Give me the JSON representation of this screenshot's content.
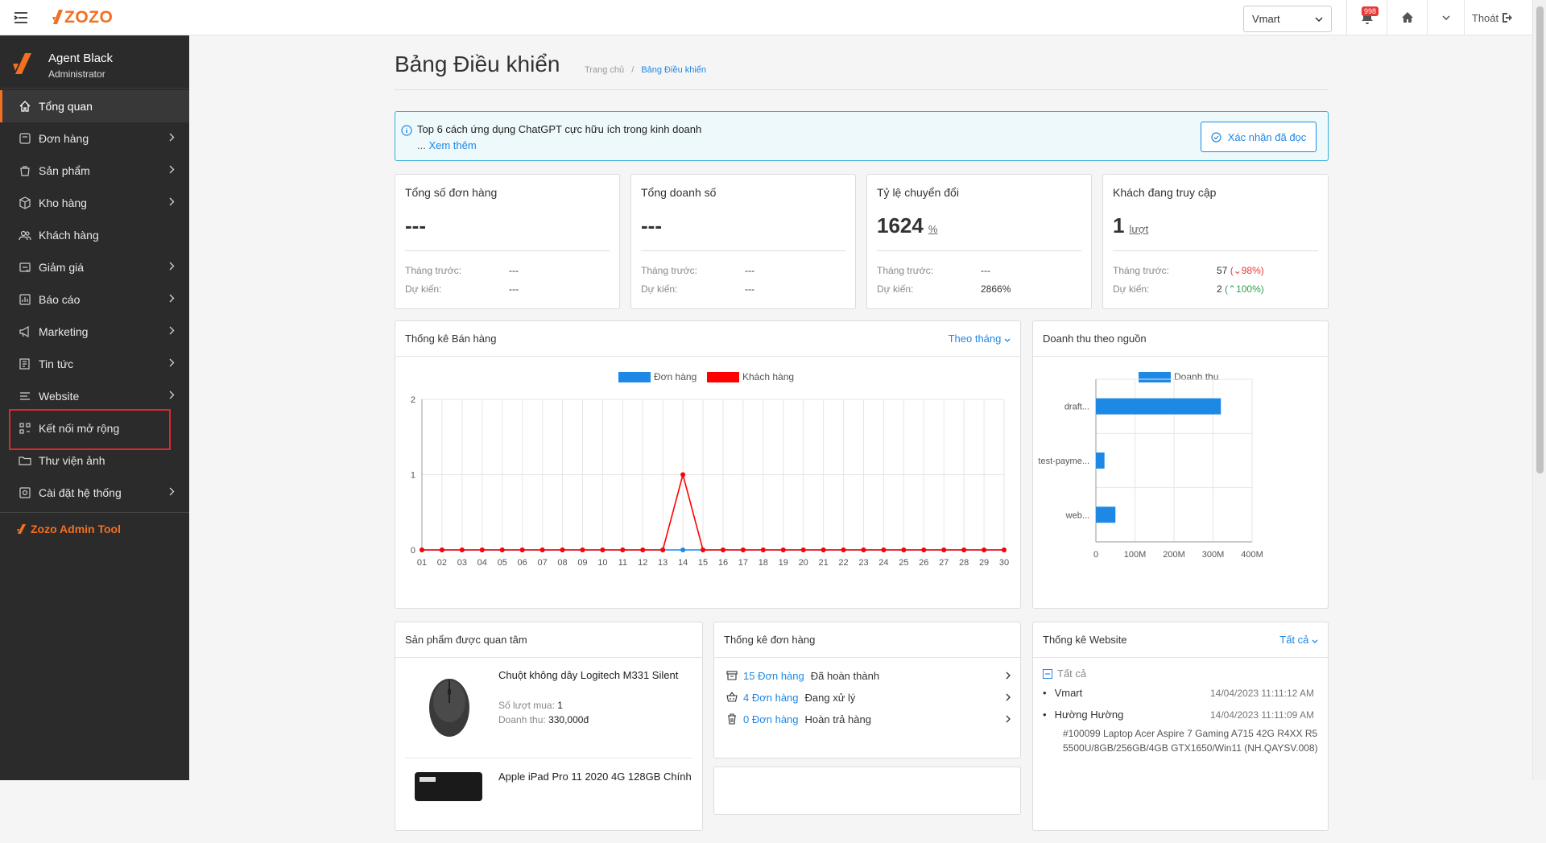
{
  "header": {
    "logo_text": "ZOZO",
    "store_value": "Vmart",
    "notif_count": "998",
    "logout_label": "Thoát"
  },
  "sidebar": {
    "user_name": "Agent Black",
    "user_role": "Administrator",
    "items": [
      {
        "label": "Tổng quan",
        "icon": "home-icon",
        "chevron": false,
        "active": true
      },
      {
        "label": "Đơn hàng",
        "icon": "order-icon",
        "chevron": true
      },
      {
        "label": "Sản phẩm",
        "icon": "bag-icon",
        "chevron": true
      },
      {
        "label": "Kho hàng",
        "icon": "box-icon",
        "chevron": true
      },
      {
        "label": "Khách hàng",
        "icon": "users-icon",
        "chevron": false
      },
      {
        "label": "Giảm giá",
        "icon": "discount-icon",
        "chevron": true
      },
      {
        "label": "Báo cáo",
        "icon": "report-icon",
        "chevron": true
      },
      {
        "label": "Marketing",
        "icon": "megaphone-icon",
        "chevron": true
      },
      {
        "label": "Tin tức",
        "icon": "news-icon",
        "chevron": true
      },
      {
        "label": "Website",
        "icon": "website-icon",
        "chevron": true
      },
      {
        "label": "Kết nối mở rộng",
        "icon": "apps-icon",
        "chevron": false
      },
      {
        "label": "Thư viện ảnh",
        "icon": "folder-icon",
        "chevron": false
      },
      {
        "label": "Cài đặt hệ thống",
        "icon": "settings-icon",
        "chevron": true
      }
    ],
    "admin_tool": "Zozo Admin Tool"
  },
  "page": {
    "title": "Bảng Điều khiển",
    "breadcrumb_home": "Trang chủ",
    "breadcrumb_sep": "/",
    "breadcrumb_current": "Bảng Điều khiển"
  },
  "notice": {
    "text": "Top 6 cách ứng dụng ChatGPT cực hữu ích trong kinh doanh",
    "ellipsis": "...",
    "more": "Xem thêm",
    "ack": "Xác nhận đã đọc"
  },
  "stats": [
    {
      "label": "Tổng số đơn hàng",
      "value": "---",
      "unit": "",
      "prev_label": "Tháng trước:",
      "prev": "---",
      "prev_delta": "",
      "fc_label": "Dự kiến:",
      "fc": "---",
      "fc_delta": ""
    },
    {
      "label": "Tổng doanh số",
      "value": "---",
      "unit": "",
      "prev_label": "Tháng trước:",
      "prev": "---",
      "prev_delta": "",
      "fc_label": "Dự kiến:",
      "fc": "---",
      "fc_delta": ""
    },
    {
      "label": "Tỷ lệ chuyển đổi",
      "value": "1624",
      "unit": "%",
      "prev_label": "Tháng trước:",
      "prev": "---",
      "prev_delta": "",
      "fc_label": "Dự kiến:",
      "fc": "2866%",
      "fc_delta": ""
    },
    {
      "label": "Khách đang truy cập",
      "value": "1",
      "unit": "lượt",
      "prev_label": "Tháng trước:",
      "prev": "57",
      "prev_delta": "(⌄98%)",
      "fc_label": "Dự kiến:",
      "fc": "2",
      "fc_delta": "(⌃100%)"
    }
  ],
  "sales_chart": {
    "title": "Thống kê Bán hàng",
    "filter": "Theo tháng",
    "legend": [
      {
        "name": "Đơn hàng",
        "color": "#1e88e5"
      },
      {
        "name": "Khách hàng",
        "color": "#ff0000"
      }
    ]
  },
  "source_chart": {
    "title": "Doanh thu theo nguồn",
    "legend": [
      {
        "name": "Doanh thu",
        "color": "#1e88e5"
      }
    ]
  },
  "chart_data": [
    {
      "type": "line",
      "title": "Thống kê Bán hàng",
      "x": [
        "01",
        "02",
        "03",
        "04",
        "05",
        "06",
        "07",
        "08",
        "09",
        "10",
        "11",
        "12",
        "13",
        "14",
        "15",
        "16",
        "17",
        "18",
        "19",
        "20",
        "21",
        "22",
        "23",
        "24",
        "25",
        "26",
        "27",
        "28",
        "29",
        "30"
      ],
      "series": [
        {
          "name": "Đơn hàng",
          "color": "#1e88e5",
          "values": [
            0,
            0,
            0,
            0,
            0,
            0,
            0,
            0,
            0,
            0,
            0,
            0,
            0,
            0,
            0,
            0,
            0,
            0,
            0,
            0,
            0,
            0,
            0,
            0,
            0,
            0,
            0,
            0,
            0,
            0
          ]
        },
        {
          "name": "Khách hàng",
          "color": "#ff0000",
          "values": [
            0,
            0,
            0,
            0,
            0,
            0,
            0,
            0,
            0,
            0,
            0,
            0,
            0,
            1,
            0,
            0,
            0,
            0,
            0,
            0,
            0,
            0,
            0,
            0,
            0,
            0,
            0,
            0,
            0,
            0
          ]
        }
      ],
      "ylim": [
        0,
        2
      ],
      "yticks": [
        "0",
        "1",
        "2"
      ],
      "grid": true,
      "legend": "top"
    },
    {
      "type": "bar",
      "orientation": "horizontal",
      "title": "Doanh thu theo nguồn",
      "categories": [
        "draft...",
        "test-payme...",
        "web..."
      ],
      "series": [
        {
          "name": "Doanh thu",
          "color": "#1e88e5",
          "values": [
            320000000,
            22000000,
            50000000
          ]
        }
      ],
      "xlim": [
        0,
        400000000
      ],
      "xticks": [
        "0",
        "100M",
        "200M",
        "300M",
        "400M"
      ],
      "grid": true,
      "legend": "top"
    }
  ],
  "products": {
    "title": "Sản phẩm được quan tâm",
    "items": [
      {
        "name": "Chuột không dây Logitech M331 Silent",
        "buys_label": "Số lượt mua:",
        "buys": "1",
        "rev_label": "Doanh thu:",
        "rev": "330,000đ"
      },
      {
        "name": "Apple iPad Pro 11 2020 4G 128GB Chính"
      }
    ]
  },
  "orders": {
    "title": "Thống kê đơn hàng",
    "rows": [
      {
        "count": "15 Đơn hàng",
        "status": "Đã hoàn thành"
      },
      {
        "count": "4 Đơn hàng",
        "status": "Đang xử lý"
      },
      {
        "count": "0 Đơn hàng",
        "status": "Hoàn trả hàng"
      }
    ]
  },
  "website": {
    "title": "Thống kê Website",
    "filter": "Tất cả",
    "all_label": "Tất cả",
    "entries": [
      {
        "name": "Vmart",
        "time": "14/04/2023 11:11:12 AM"
      },
      {
        "name": "Hường Hường",
        "time": "14/04/2023 11:11:09 AM",
        "detail": "#100099 Laptop Acer Aspire 7 Gaming A715 42G R4XX R5 5500U/8GB/256GB/4GB GTX1650/Win11 (NH.QAYSV.008)"
      }
    ]
  }
}
